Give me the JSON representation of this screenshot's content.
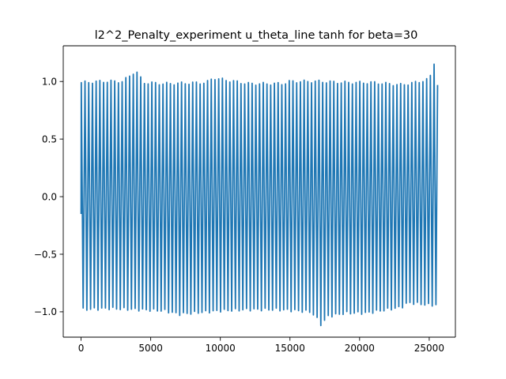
{
  "chart_data": {
    "type": "line",
    "title": "l2^2_Penalty_experiment u_theta_line tanh for beta=30",
    "xlabel": "",
    "ylabel": "",
    "xlim": [
      -1280,
      26880
    ],
    "ylim": [
      -1.22,
      1.31
    ],
    "grid": false,
    "legend": "none",
    "x_ticks": [
      0,
      5000,
      10000,
      15000,
      20000,
      25000
    ],
    "x_tick_labels": [
      "0",
      "5000",
      "10000",
      "15000",
      "20000",
      "25000"
    ],
    "y_ticks": [
      -1.0,
      -0.5,
      0.0,
      0.5,
      1.0
    ],
    "y_tick_labels": [
      "−1.0",
      "−0.5",
      "0.0",
      "0.5",
      "1.0"
    ],
    "series": [
      {
        "color": "#1f77b4",
        "x_start": 0,
        "x_end": 25600,
        "cycles": 96,
        "start_value": -0.15,
        "end_value": 0.97,
        "peak_anchors": [
          [
            0,
            0.99
          ],
          [
            1500,
            1.0
          ],
          [
            3000,
            1.0
          ],
          [
            3800,
            1.08
          ],
          [
            4000,
            1.08
          ],
          [
            4500,
            0.99
          ],
          [
            6000,
            0.98
          ],
          [
            9000,
            0.99
          ],
          [
            9500,
            1.03
          ],
          [
            10000,
            1.02
          ],
          [
            12000,
            0.98
          ],
          [
            14500,
            0.98
          ],
          [
            15000,
            1.0
          ],
          [
            17000,
            1.0
          ],
          [
            19000,
            0.99
          ],
          [
            21000,
            0.99
          ],
          [
            23000,
            0.97
          ],
          [
            24000,
            0.99
          ],
          [
            25000,
            1.02
          ],
          [
            25150,
            1.07
          ],
          [
            25300,
            1.2
          ],
          [
            25600,
            0.97
          ]
        ],
        "trough_anchors": [
          [
            0,
            -0.98
          ],
          [
            2000,
            -0.97
          ],
          [
            4000,
            -0.98
          ],
          [
            6000,
            -0.99
          ],
          [
            7000,
            -1.02
          ],
          [
            8000,
            -1.01
          ],
          [
            10000,
            -0.99
          ],
          [
            12000,
            -0.98
          ],
          [
            14000,
            -0.98
          ],
          [
            15500,
            -0.99
          ],
          [
            16500,
            -1.0
          ],
          [
            16900,
            -1.05
          ],
          [
            17200,
            -1.11
          ],
          [
            17400,
            -1.09
          ],
          [
            17700,
            -1.04
          ],
          [
            19000,
            -1.01
          ],
          [
            20500,
            -1.01
          ],
          [
            21500,
            -0.99
          ],
          [
            23000,
            -0.96
          ],
          [
            23500,
            -0.92
          ],
          [
            25000,
            -0.94
          ],
          [
            25600,
            -0.94
          ]
        ]
      }
    ]
  }
}
